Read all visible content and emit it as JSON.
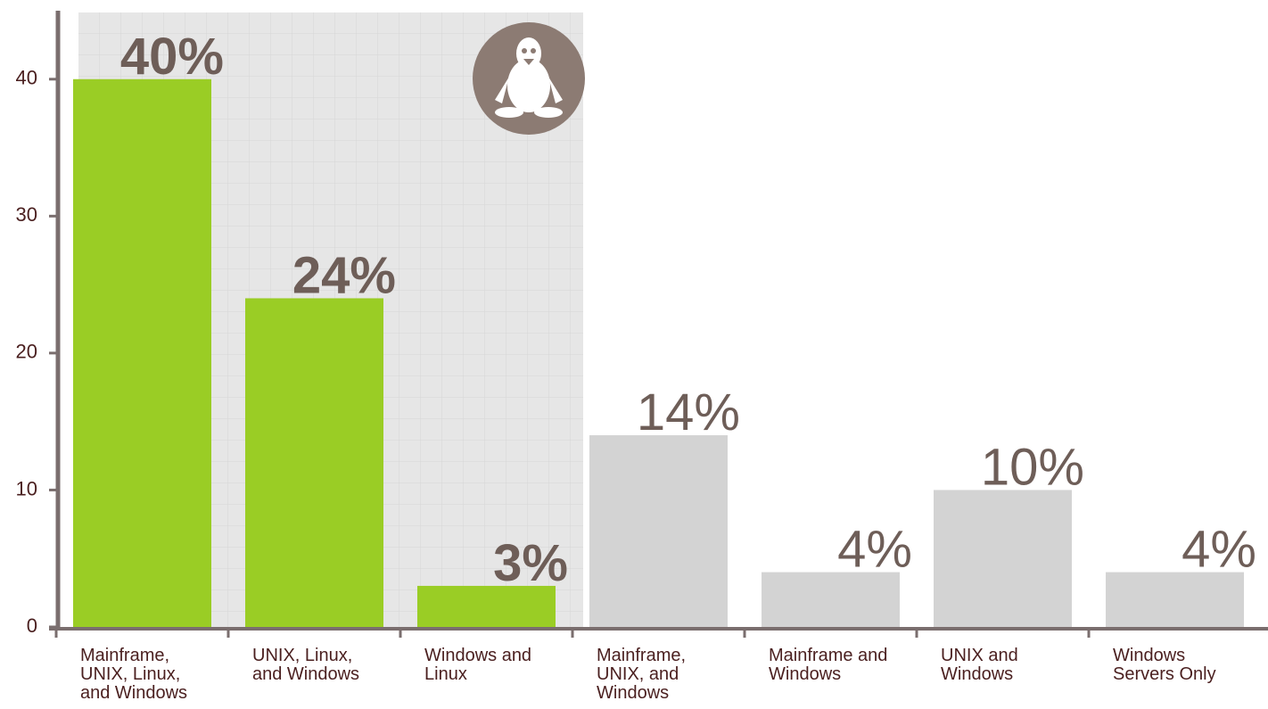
{
  "chart_data": {
    "type": "bar",
    "categories": [
      "Mainframe, UNIX, Linux, and Windows",
      "UNIX, Linux, and Windows",
      "Windows and Linux",
      "Mainframe, UNIX, and Windows",
      "Mainframe and Windows",
      "UNIX and Windows",
      "Windows Servers Only"
    ],
    "series": [
      {
        "color": "#9acd25",
        "values": [
          40,
          24,
          3,
          null,
          null,
          null,
          null
        ],
        "value_labels": [
          "40%",
          "24%",
          "3%",
          null,
          null,
          null,
          null
        ]
      },
      {
        "color": "#d3d3d3",
        "values": [
          null,
          null,
          null,
          14,
          4,
          10,
          4
        ],
        "value_labels": [
          null,
          null,
          null,
          "14%",
          "4%",
          "10%",
          "4%"
        ]
      }
    ],
    "ylim": [
      0,
      45
    ],
    "yticks": [
      0,
      10,
      20,
      30,
      40
    ]
  }
}
